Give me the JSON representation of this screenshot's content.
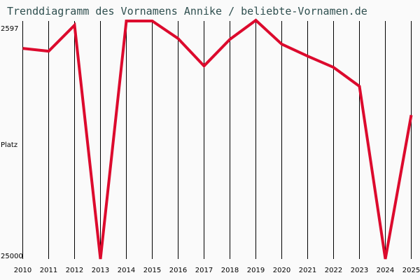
{
  "title": "Trenddiagramm des Vornamens Annike / beliebte-Vornamen.de",
  "colors": {
    "line": "#dc0a2d",
    "title": "#2f4f4f",
    "grid": "#000000",
    "background": "#fafafa"
  },
  "chart_data": {
    "type": "line",
    "title": "Trenddiagramm des Vornamens Annike / beliebte-Vornamen.de",
    "xlabel": "",
    "ylabel": "Platz",
    "y_axis_inverted": true,
    "ylim": [
      2597,
      25000
    ],
    "y_tick_labels": [
      "2597",
      "25000"
    ],
    "grid": "vertical lines at each year",
    "categories": [
      "2010",
      "2011",
      "2012",
      "2013",
      "2014",
      "2015",
      "2016",
      "2017",
      "2018",
      "2019",
      "2020",
      "2021",
      "2022",
      "2023",
      "2024",
      "2025"
    ],
    "series": [
      {
        "name": "Annike",
        "values": [
          5233,
          5496,
          3058,
          25000,
          2663,
          2663,
          4310,
          6880,
          4376,
          2597,
          4837,
          5958,
          7012,
          8791,
          25000,
          11493
        ]
      }
    ]
  },
  "axis": {
    "y_top": "2597",
    "y_bottom": "25000",
    "y_label": "Platz"
  }
}
